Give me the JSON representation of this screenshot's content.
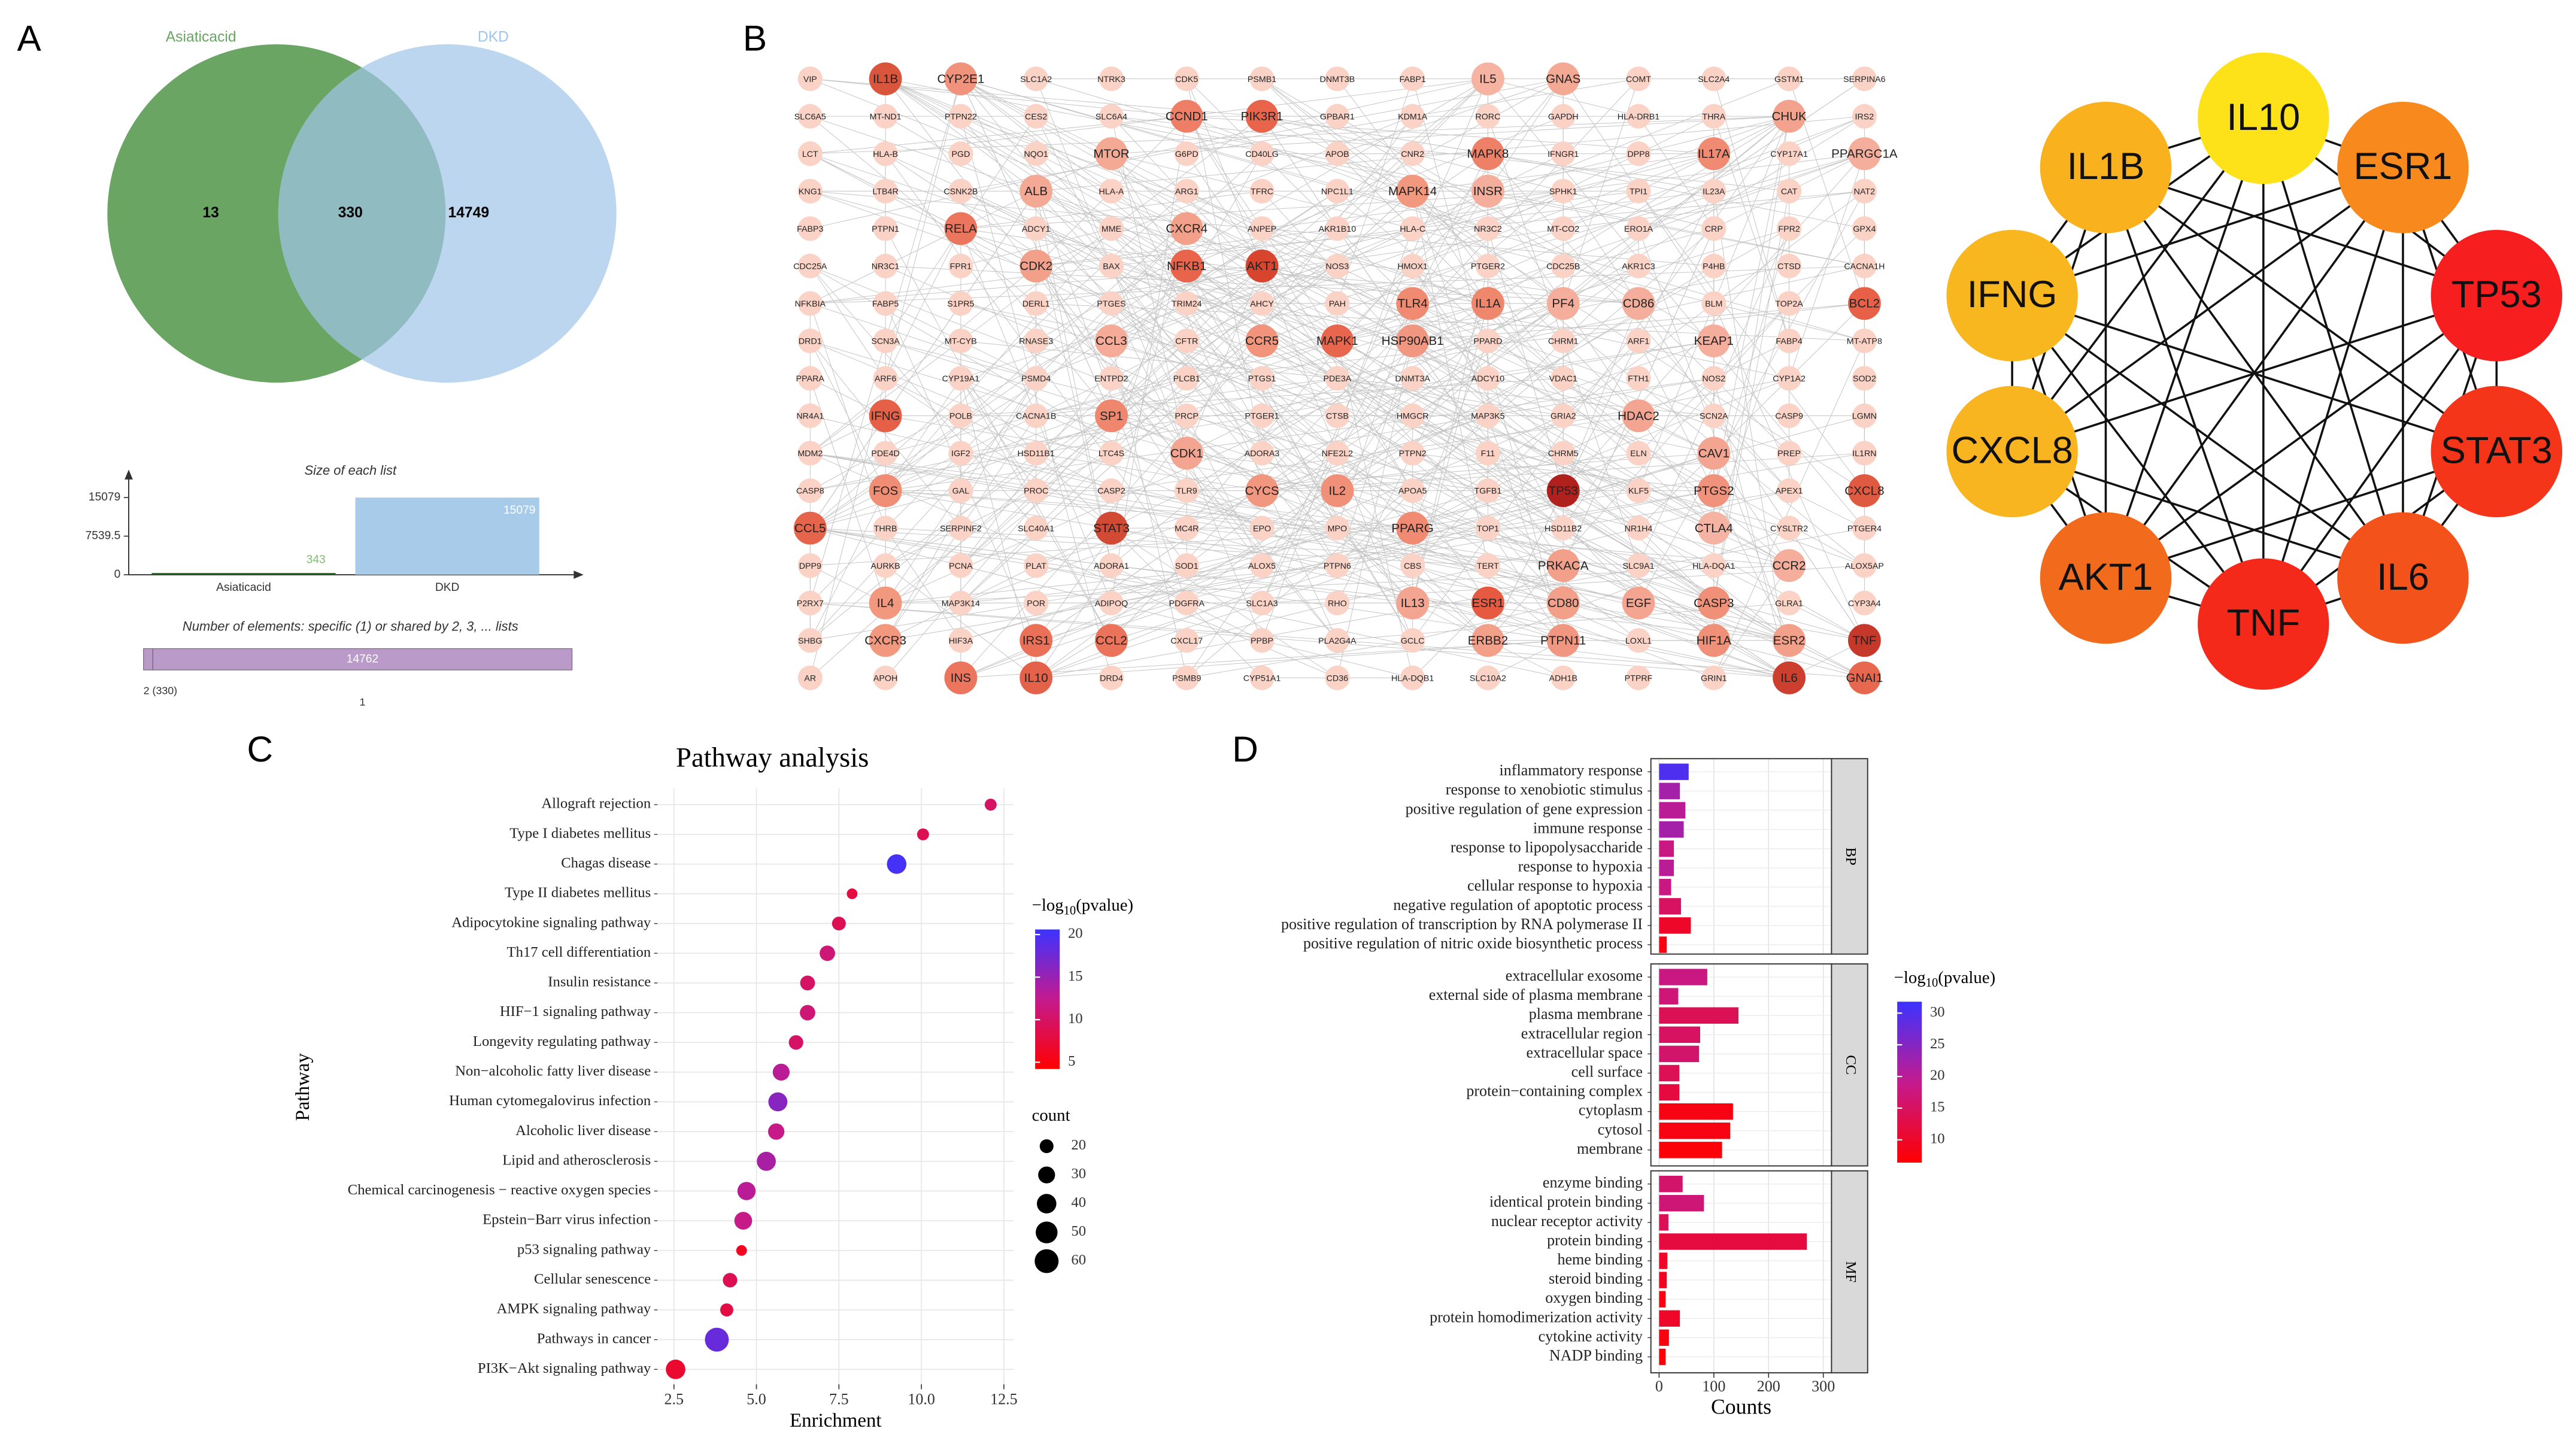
{
  "panel_labels": [
    "A",
    "B",
    "C",
    "D"
  ],
  "chart_data": [
    {
      "type": "venn",
      "sets": [
        {
          "name": "Asiaticacid",
          "color": "#6aa564"
        },
        {
          "name": "DKD",
          "color": "#9fc5e8"
        }
      ],
      "values": [
        13,
        330,
        14749
      ]
    },
    {
      "type": "bar",
      "title": "Size of each list",
      "categories": [
        "Asiaticacid",
        "DKD"
      ],
      "values": [
        343,
        15079
      ],
      "colors": [
        "#1f6e1f",
        "#a7cbe9"
      ],
      "label_colors": [
        "#7fbf6f",
        "#ffffff"
      ],
      "ylim": [
        0,
        19250
      ],
      "yticks": [
        0,
        7539.5,
        15079
      ]
    },
    {
      "type": "stacked-bar",
      "title": "Number of elements: specific (1) or shared by 2, 3, ... lists",
      "categories": [
        "2 (330)",
        "1"
      ],
      "values": [
        330,
        14762
      ],
      "color": "#b99ac8"
    },
    {
      "type": "network",
      "node_color": "#fbd3c6",
      "edge_color": "#c4c4c4",
      "rows": [
        [
          "VIP",
          "IL1B",
          "CYP2E1",
          "SLC1A2",
          "NTRK3",
          "CDK5",
          "PSMB1",
          "DNMT3B",
          "FABP1",
          "IL5",
          "GNAS",
          "COMT",
          "SLC2A4",
          "GSTM1",
          "SERPINA6"
        ],
        [
          "SLC6A5",
          "MT-ND1",
          "PTPN22",
          "CES2",
          "SLC6A4",
          "CCND1",
          "PIK3R1",
          "GPBAR1",
          "KDM1A",
          "RORC",
          "GAPDH",
          "HLA-DRB1",
          "THRA",
          "CHUK",
          "IRS2"
        ],
        [
          "LCT",
          "HLA-B",
          "PGD",
          "NQO1",
          "MTOR",
          "G6PD",
          "CD40LG",
          "APOB",
          "CNR2",
          "MAPK8",
          "IFNGR1",
          "DPP8",
          "IL17A",
          "CYP17A1",
          "PPARGC1A"
        ],
        [
          "KNG1",
          "LTB4R",
          "CSNK2B",
          "ALB",
          "HLA-A",
          "ARG1",
          "TFRC",
          "NPC1L1",
          "MAPK14",
          "INSR",
          "SPHK1",
          "TPI1",
          "IL23A",
          "CAT",
          "NAT2"
        ],
        [
          "FABP3",
          "PTPN1",
          "RELA",
          "ADCY1",
          "MME",
          "CXCR4",
          "ANPEP",
          "AKR1B10",
          "HLA-C",
          "NR3C2",
          "MT-CO2",
          "ERO1A",
          "CRP",
          "FPR2",
          "GPX4"
        ],
        [
          "CDC25A",
          "NR3C1",
          "FPR1",
          "CDK2",
          "BAX",
          "NFKB1",
          "AKT1",
          "NOS3",
          "HMOX1",
          "PTGER2",
          "CDC25B",
          "AKR1C3",
          "P4HB",
          "CTSD",
          "CACNA1H"
        ],
        [
          "NFKBIA",
          "FABP5",
          "S1PR5",
          "DERL1",
          "PTGES",
          "TRIM24",
          "AHCY",
          "PAH",
          "TLR4",
          "IL1A",
          "PF4",
          "CD86",
          "BLM",
          "TOP2A",
          "BCL2"
        ],
        [
          "DRD1",
          "SCN3A",
          "MT-CYB",
          "RNASE3",
          "CCL3",
          "CFTR",
          "CCR5",
          "MAPK1",
          "HSP90AB1",
          "PPARD",
          "CHRM1",
          "ARF1",
          "KEAP1",
          "FABP4",
          "MT-ATP8"
        ],
        [
          "PPARA",
          "ARF6",
          "CYP19A1",
          "PSMD4",
          "ENTPD2",
          "PLCB1",
          "PTGS1",
          "PDE3A",
          "DNMT3A",
          "ADCY10",
          "VDAC1",
          "FTH1",
          "NOS2",
          "CYP1A2",
          "SOD2"
        ],
        [
          "NR4A1",
          "IFNG",
          "POLB",
          "CACNA1B",
          "SP1",
          "PRCP",
          "PTGER1",
          "CTSB",
          "HMGCR",
          "MAP3K5",
          "GRIA2",
          "HDAC2",
          "SCN2A",
          "CASP9",
          "LGMN"
        ],
        [
          "MDM2",
          "PDE4D",
          "IGF2",
          "HSD11B1",
          "LTC4S",
          "CDK1",
          "ADORA3",
          "NFE2L2",
          "PTPN2",
          "F11",
          "CHRM5",
          "ELN",
          "CAV1",
          "PREP",
          "IL1RN"
        ],
        [
          "CASP8",
          "FOS",
          "GAL",
          "PROC",
          "CASP2",
          "TLR9",
          "CYCS",
          "IL2",
          "APOA5",
          "TGFB1",
          "TP53",
          "KLF5",
          "PTGS2",
          "APEX1",
          "CXCL8"
        ],
        [
          "CCL5",
          "THRB",
          "SERPINF2",
          "SLC40A1",
          "STAT3",
          "MC4R",
          "EPO",
          "MPO",
          "PPARG",
          "TOP1",
          "HSD11B2",
          "NR1H4",
          "CTLA4",
          "CYSLTR2",
          "PTGER4"
        ],
        [
          "DPP9",
          "AURKB",
          "PCNA",
          "PLAT",
          "ADORA1",
          "SOD1",
          "ALOX5",
          "PTPN6",
          "CBS",
          "TERT",
          "PRKACA",
          "SLC9A1",
          "HLA-DQA1",
          "CCR2",
          "ALOX5AP"
        ],
        [
          "P2RX7",
          "IL4",
          "MAP3K14",
          "POR",
          "ADIPOQ",
          "PDGFRA",
          "SLC1A3",
          "RHO",
          "IL13",
          "ESR1",
          "CD80",
          "EGF",
          "CASP3",
          "GLRA1",
          "CYP3A4"
        ],
        [
          "SHBG",
          "CXCR3",
          "HIF3A",
          "IRS1",
          "CCL2",
          "CXCL17",
          "PPBP",
          "PLA2G4A",
          "GCLC",
          "ERBB2",
          "PTPN11",
          "LOXL1",
          "HIF1A",
          "ESR2",
          "TNF"
        ],
        [
          "AR",
          "APOH",
          "INS",
          "IL10",
          "DRD4",
          "PSMB9",
          "CYP51A1",
          "CD36",
          "HLA-DQB1",
          "SLC10A2",
          "ADH1B",
          "PTPRF",
          "GRIN1",
          "IL6",
          "GNAI1"
        ]
      ],
      "colors": {
        "IL1B": "#d9553b",
        "CYP2E1": "#f1937c",
        "PIK3R1": "#e8644b",
        "CCND1": "#ee7f66",
        "MAPK8": "#ee8068",
        "IL17A": "#f08a72",
        "CHUK": "#f3a28e",
        "MTOR": "#f4a995",
        "IL5": "#f6b3a2",
        "GNAS": "#f4a995",
        "RELA": "#ec765d",
        "NFKB1": "#e8654c",
        "AKT1": "#d8452f",
        "TLR4": "#f08a70",
        "IL1A": "#ef876d",
        "BCL2": "#e76047",
        "MAPK1": "#e8664d",
        "HSP90AB1": "#f19680",
        "CCL3": "#f5ab98",
        "CCR5": "#f2937c",
        "IFNG": "#e56047",
        "SP1": "#ef876e",
        "TP53": "#b0201c",
        "CXCL8": "#df5a40",
        "PTGS2": "#f1937c",
        "FOS": "#f08e75",
        "CYCS": "#f2977f",
        "IL2": "#f19078",
        "STAT3": "#d24a33",
        "CCL5": "#e6644c",
        "PPARG": "#f08a72",
        "PRKACA": "#f3a08b",
        "ESR1": "#e55a41",
        "IL4": "#f2987f",
        "IL13": "#f4a592",
        "CASP3": "#f19078",
        "TNF": "#c6382a",
        "IRS1": "#ea7058",
        "CCL2": "#eb735a",
        "ERBB2": "#f3a08b",
        "PTPN11": "#f19680",
        "HIF1A": "#f09078",
        "ESR2": "#f3a08b",
        "INS": "#ec765d",
        "IL10": "#e5624a",
        "IL6": "#cc3f2e",
        "GNAI1": "#e8684f",
        "MAPK14": "#f2987f",
        "INSR": "#f5ae9b",
        "CD80": "#f3a08b",
        "EGF": "#f4a592",
        "CCR2": "#f5ae9b",
        "CAV1": "#f4a592",
        "CDK1": "#f4a592",
        "CDK2": "#f3a08b",
        "CXCR4": "#f3a08b",
        "HDAC2": "#f4a592",
        "CXCR3": "#f2987f",
        "CD86": "#f5ae9b",
        "PPARGC1A": "#f5ae9b",
        "ALB": "#f4a995",
        "PF4": "#f5ae9b",
        "KEAP1": "#f5ae9b",
        "CTLA4": "#f5b4a3"
      }
    },
    {
      "type": "hub-network",
      "edge_color": "#111111",
      "nodes": [
        {
          "label": "IL10",
          "color": "#fde21a"
        },
        {
          "label": "ESR1",
          "color": "#f7891d"
        },
        {
          "label": "TP53",
          "color": "#f61e1e"
        },
        {
          "label": "STAT3",
          "color": "#f5351a"
        },
        {
          "label": "IL6",
          "color": "#f4521b"
        },
        {
          "label": "TNF",
          "color": "#f5291a"
        },
        {
          "label": "AKT1",
          "color": "#f26a1c"
        },
        {
          "label": "CXCL8",
          "color": "#f9b520"
        },
        {
          "label": "IFNG",
          "color": "#f9b71f"
        },
        {
          "label": "IL1B",
          "color": "#f9b21e"
        }
      ]
    },
    {
      "type": "scatter",
      "title": "Pathway analysis",
      "xlabel": "Enrichment",
      "ylabel": "Pathway",
      "categories": [
        "Allograft rejection",
        "Type I diabetes mellitus",
        "Chagas disease",
        "Type II diabetes mellitus",
        "Adipocytokine signaling pathway",
        "Th17 cell differentiation",
        "Insulin resistance",
        "HIF−1 signaling pathway",
        "Longevity regulating pathway",
        "Non−alcoholic fatty liver disease",
        "Human cytomegalovirus infection",
        "Alcoholic liver disease",
        "Lipid and atherosclerosis",
        "Chemical carcinogenesis − reactive oxygen species",
        "Epstein−Barr virus infection",
        "p53 signaling pathway",
        "Cellular senescence",
        "AMPK signaling pathway",
        "Pathways in cancer",
        "PI3K−Akt signaling pathway"
      ],
      "values": [
        12.1,
        10.05,
        9.25,
        7.9,
        7.5,
        7.15,
        6.55,
        6.55,
        6.2,
        5.75,
        5.65,
        5.6,
        5.3,
        4.7,
        4.6,
        4.55,
        4.2,
        4.1,
        3.8,
        2.55
      ],
      "color_values": [
        10,
        9,
        20,
        8,
        9,
        11,
        10,
        11,
        10,
        13,
        16,
        12,
        14,
        13,
        12,
        6,
        9,
        8,
        18,
        7
      ],
      "size_values": [
        15,
        15,
        40,
        12,
        20,
        25,
        23,
        25,
        22,
        30,
        38,
        28,
        38,
        35,
        33,
        12,
        22,
        18,
        60,
        40
      ],
      "xlim": [
        2.0,
        12.8
      ],
      "xticks": [
        2.5,
        {
          "value": 5,
          "label": "5.0"
        },
        7.5,
        {
          "value": 10,
          "label": "10.0"
        },
        12.5
      ],
      "grid": true,
      "colorbar": {
        "title": [
          "−log",
          "10",
          "(pvalue)"
        ],
        "lim": [
          4.2,
          20.6
        ],
        "ticks": [
          5,
          10,
          15,
          20
        ],
        "colors": [
          "#ff0000",
          "#c41a8e",
          "#3c33ff"
        ]
      },
      "size_legend": {
        "title": "count",
        "values": [
          20,
          30,
          40,
          50,
          60
        ]
      }
    },
    {
      "type": "bar",
      "orientation": "horizontal",
      "xlabel": "Counts",
      "facets": [
        {
          "label": "BP",
          "categories": [
            "inflammatory response",
            "response to xenobiotic stimulus",
            "positive regulation of gene expression",
            "immune response",
            "response to lipopolysaccharide",
            "response to hypoxia",
            "cellular response to hypoxia",
            "negative regulation of apoptotic process",
            "positive regulation of transcription by RNA polymerase II",
            "positive regulation of nitric oxide biosynthetic process"
          ],
          "values": [
            54,
            38,
            48,
            45,
            27,
            27,
            22,
            40,
            58,
            14
          ],
          "color_values": [
            30,
            22,
            20,
            22,
            18,
            20,
            18,
            15,
            10,
            8
          ]
        },
        {
          "label": "CC",
          "categories": [
            "extracellular exosome",
            "external side of plasma membrane",
            "plasma membrane",
            "extracellular region",
            "extracellular space",
            "cell surface",
            "protein−containing complex",
            "cytoplasm",
            "cytosol",
            "membrane"
          ],
          "values": [
            88,
            35,
            145,
            75,
            73,
            37,
            37,
            135,
            130,
            115
          ],
          "color_values": [
            18,
            17,
            14,
            15,
            16,
            14,
            12,
            8,
            8,
            7
          ]
        },
        {
          "label": "MF",
          "categories": [
            "enzyme binding",
            "identical protein binding",
            "nuclear receptor activity",
            "protein binding",
            "heme binding",
            "steroid binding",
            "oxygen binding",
            "protein homodimerization activity",
            "cytokine activity",
            "NADP binding"
          ],
          "values": [
            43,
            82,
            17,
            270,
            15,
            14,
            12,
            38,
            18,
            12
          ],
          "color_values": [
            16,
            17,
            14,
            12,
            10,
            9,
            8,
            10,
            8,
            7
          ]
        }
      ],
      "xlim": [
        -15,
        315
      ],
      "xticks": [
        0,
        100,
        200,
        300
      ],
      "grid": true,
      "colorbar": {
        "title": [
          "−log",
          "10",
          "(pvalue)"
        ],
        "lim": [
          6.4,
          31.8
        ],
        "ticks": [
          10,
          15,
          20,
          25,
          30
        ],
        "colors": [
          "#ff0000",
          "#c41a8e",
          "#3c33ff"
        ]
      }
    }
  ]
}
